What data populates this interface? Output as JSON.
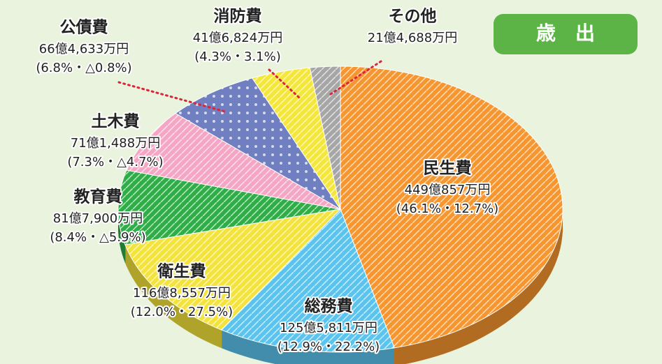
{
  "chart_data": {
    "type": "pie",
    "title": "歳　出",
    "categories": [
      "民生費",
      "総務費",
      "衛生費",
      "教育費",
      "土木費",
      "公債費",
      "消防費",
      "その他"
    ],
    "amounts": [
      "449億857万円",
      "125億5,811万円",
      "116億8,557万円",
      "81億7,900万円",
      "71億1,488万円",
      "66億4,633万円",
      "41億6,824万円",
      "21億4,688万円"
    ],
    "values": [
      46.1,
      12.9,
      12.0,
      8.4,
      7.3,
      6.8,
      4.3,
      2.2
    ],
    "value_labels": [
      "(46.1%・12.7%)",
      "(12.9%・22.2%)",
      "(12.0%・27.5%)",
      "(8.4%・△5.9%)",
      "(7.3%・△4.7%)",
      "(6.8%・△0.8%)",
      "(4.3%・3.1%)",
      null
    ],
    "colors": [
      "#f7962f",
      "#5bc4ee",
      "#f3e33a",
      "#2fae48",
      "#f4a6c4",
      "#6f7fc0",
      "#f5e63a",
      "#a6a6a6"
    ]
  }
}
